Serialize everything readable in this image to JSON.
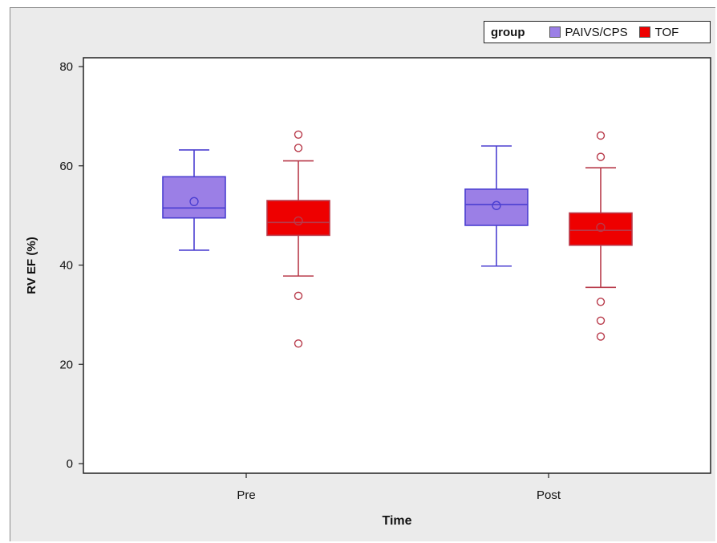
{
  "chart_data": {
    "type": "box",
    "xlabel": "Time",
    "ylabel": "RV EF (%)",
    "ylim": [
      0,
      80
    ],
    "yticks": [
      0,
      20,
      40,
      60,
      80
    ],
    "categories": [
      "Pre",
      "Post"
    ],
    "legend": {
      "title": "group",
      "placement": "top-right",
      "entries": [
        "PAIVS/CPS",
        "TOF"
      ]
    },
    "series": [
      {
        "name": "PAIVS/CPS",
        "fill": "#9b7fe6",
        "stroke": "#4b3fd1",
        "boxes": [
          {
            "category": "Pre",
            "whisker_low": 43,
            "q1": 49.5,
            "median": 51.5,
            "q3": 57.8,
            "whisker_high": 63.2,
            "mean": 52.8,
            "outliers": []
          },
          {
            "category": "Post",
            "whisker_low": 39.8,
            "q1": 48,
            "median": 52.2,
            "q3": 55.3,
            "whisker_high": 64,
            "mean": 52,
            "outliers": []
          }
        ]
      },
      {
        "name": "TOF",
        "fill": "#ee0000",
        "stroke": "#b83a4a",
        "boxes": [
          {
            "category": "Pre",
            "whisker_low": 37.8,
            "q1": 46,
            "median": 48.6,
            "q3": 53,
            "whisker_high": 61,
            "mean": 48.9,
            "outliers": [
              24.2,
              33.8,
              63.6,
              66.3
            ]
          },
          {
            "category": "Post",
            "whisker_low": 35.5,
            "q1": 44,
            "median": 47,
            "q3": 50.5,
            "whisker_high": 59.6,
            "mean": 47.6,
            "outliers": [
              25.6,
              28.8,
              32.6,
              61.8,
              66.1
            ]
          }
        ]
      }
    ]
  }
}
